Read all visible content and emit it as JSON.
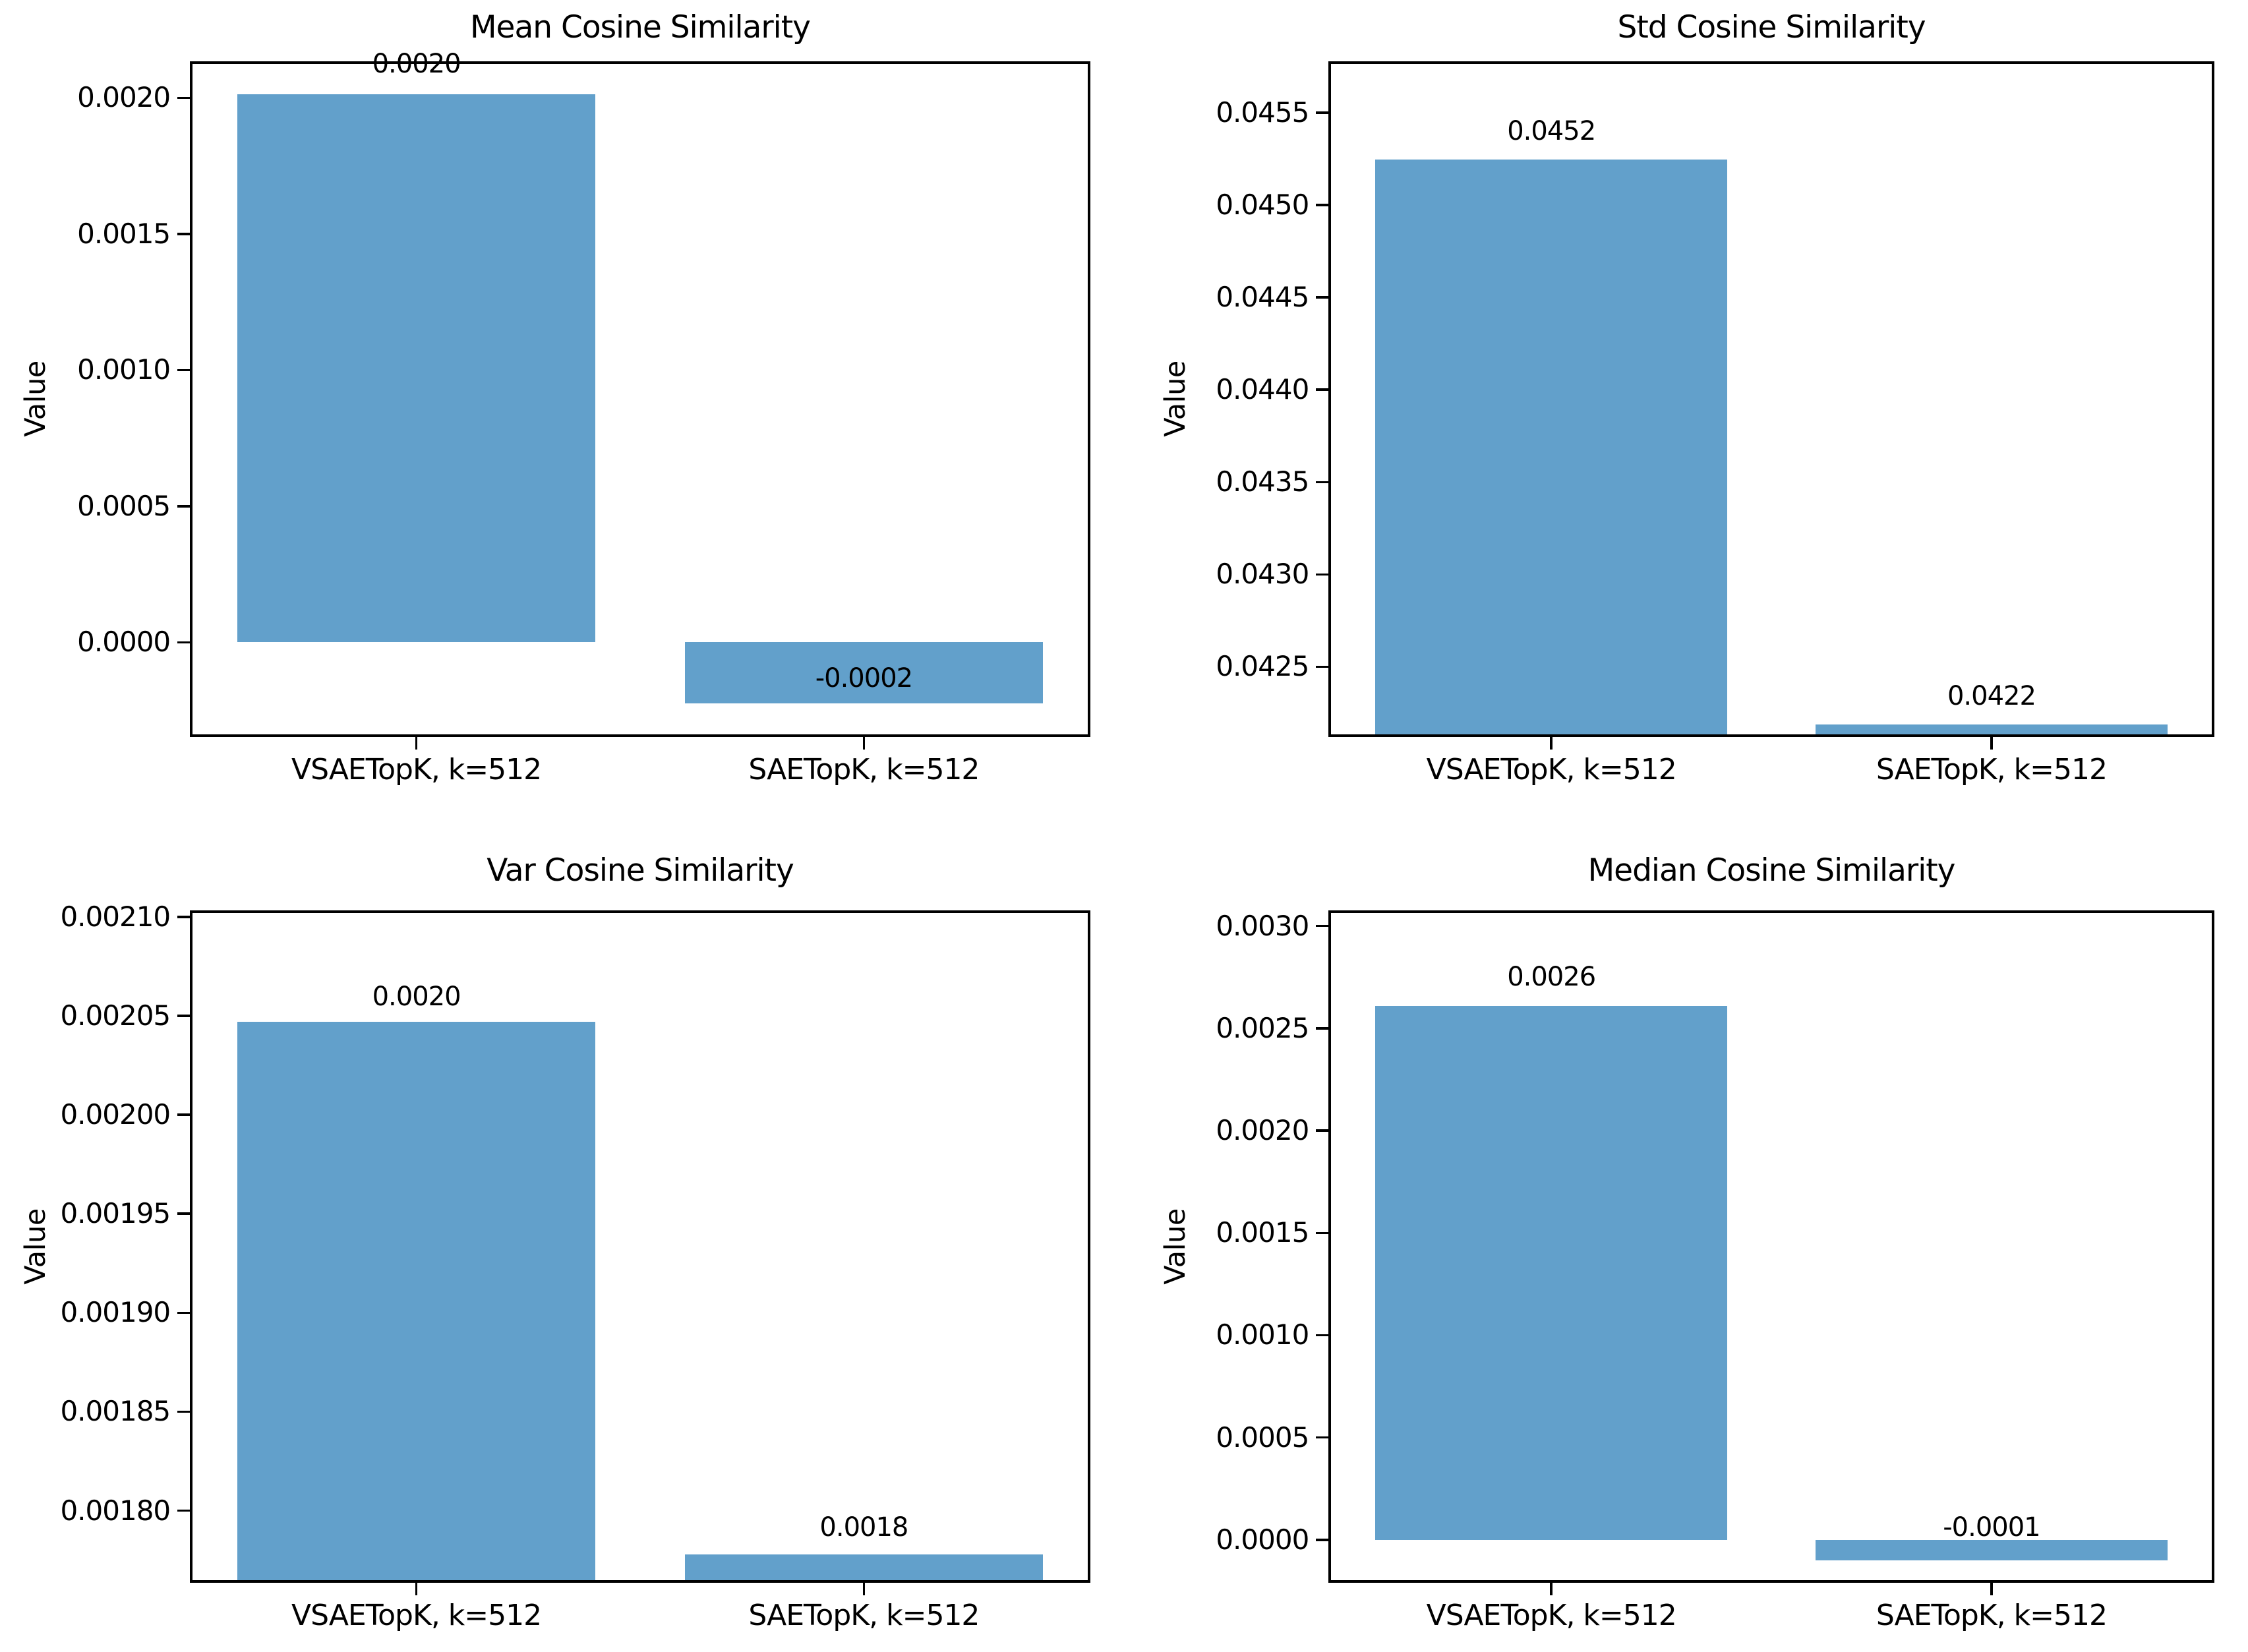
{
  "figure": {
    "background": "#ffffff",
    "bar_color": "#62A0CB",
    "axis_color": "#000000",
    "text_color": "#000000"
  },
  "chart_data": [
    {
      "type": "bar",
      "title": "Mean Cosine Similarity",
      "xlabel": "",
      "ylabel": "Value",
      "categories": [
        "VSAETopK, k=512",
        "SAETopK, k=512"
      ],
      "values": [
        0.002013,
        -0.000225
      ],
      "bar_value_labels": [
        "0.0020",
        "-0.0002"
      ],
      "bar_value_label_y": [
        0.002075,
        -0.00018
      ],
      "ytick_values": [
        0.0,
        0.0005,
        0.001,
        0.0015,
        0.002
      ],
      "ytick_labels": [
        "0.0000",
        "0.0005",
        "0.0010",
        "0.0015",
        "0.0020"
      ],
      "ylim": [
        -0.000337,
        0.002125
      ],
      "grid": false,
      "legend": null
    },
    {
      "type": "bar",
      "title": "Std Cosine Similarity",
      "xlabel": "",
      "ylabel": "Value",
      "categories": [
        "VSAETopK, k=512",
        "SAETopK, k=512"
      ],
      "values": [
        0.045246,
        0.042186
      ],
      "bar_value_labels": [
        "0.0452",
        "0.0422"
      ],
      "bar_value_label_y": [
        0.04533,
        0.04227
      ],
      "ytick_values": [
        0.0425,
        0.043,
        0.0435,
        0.044,
        0.0445,
        0.045,
        0.0455
      ],
      "ytick_labels": [
        "0.0425",
        "0.0430",
        "0.0435",
        "0.0440",
        "0.0445",
        "0.0450",
        "0.0455"
      ],
      "ylim": [
        0.042135,
        0.045765
      ],
      "grid": false,
      "legend": null
    },
    {
      "type": "bar",
      "title": "Var Cosine Similarity",
      "xlabel": "",
      "ylabel": "Value",
      "categories": [
        "VSAETopK, k=512",
        "SAETopK, k=512"
      ],
      "values": [
        0.002047,
        0.001778
      ],
      "bar_value_labels": [
        "0.0020",
        "0.0018"
      ],
      "bar_value_label_y": [
        0.002053,
        0.001785
      ],
      "ytick_values": [
        0.0018,
        0.00185,
        0.0019,
        0.00195,
        0.002,
        0.00205,
        0.0021
      ],
      "ytick_labels": [
        "0.00180",
        "0.00185",
        "0.00190",
        "0.00195",
        "0.00200",
        "0.00205",
        "0.00210"
      ],
      "ylim": [
        0.001765,
        0.002102
      ],
      "grid": false,
      "legend": null
    },
    {
      "type": "bar",
      "title": "Median Cosine Similarity",
      "xlabel": "",
      "ylabel": "Value",
      "categories": [
        "VSAETopK, k=512",
        "SAETopK, k=512"
      ],
      "values": [
        0.00261,
        -0.0001
      ],
      "bar_value_labels": [
        "0.0026",
        "-0.0001"
      ],
      "bar_value_label_y": [
        0.002685,
        -4e-06
      ],
      "ytick_values": [
        0.0,
        0.0005,
        0.001,
        0.0015,
        0.002,
        0.0025,
        0.003
      ],
      "ytick_labels": [
        "0.0000",
        "0.0005",
        "0.0010",
        "0.0015",
        "0.0020",
        "0.0025",
        "0.0030"
      ],
      "ylim": [
        -0.000196,
        0.003064
      ],
      "grid": false,
      "legend": null
    }
  ]
}
